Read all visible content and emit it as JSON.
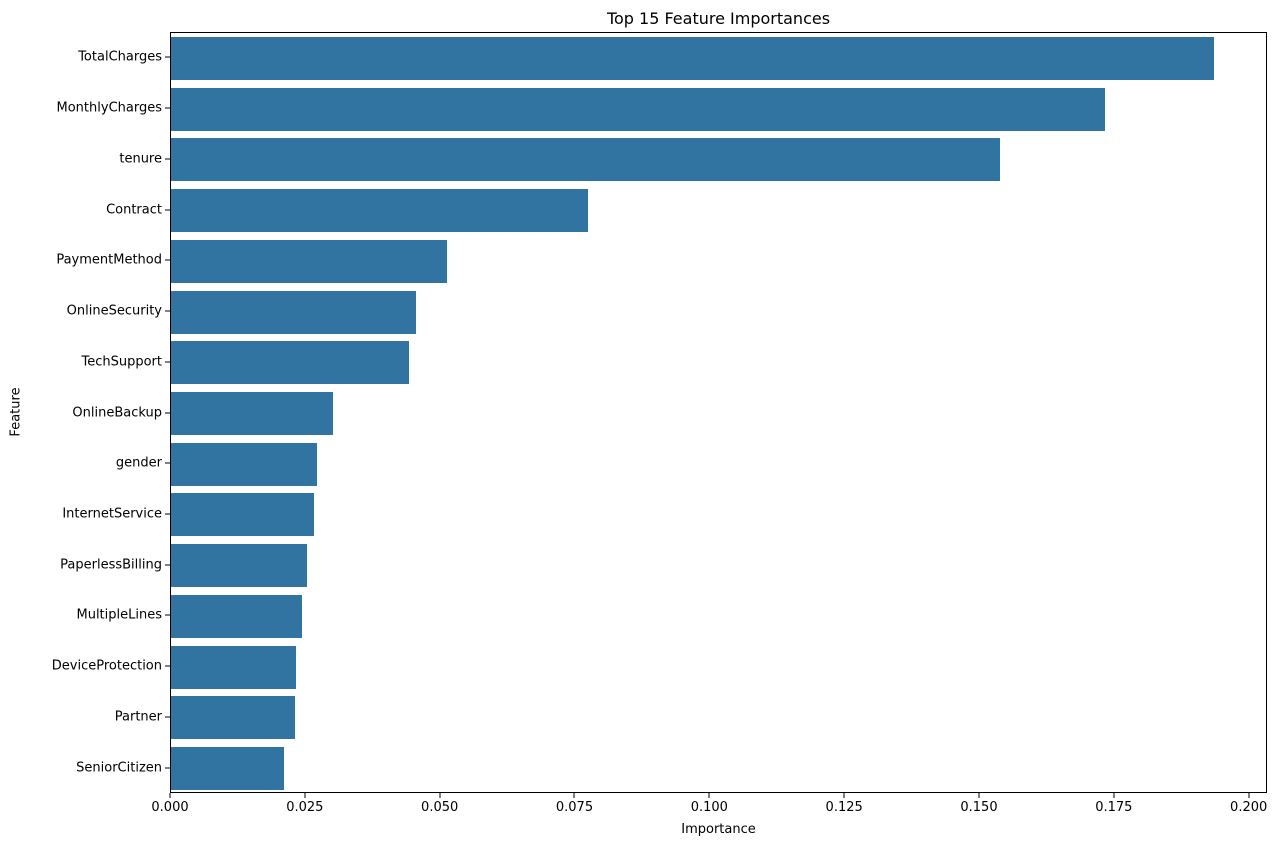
{
  "chart_data": {
    "type": "bar",
    "orientation": "horizontal",
    "title": "Top 15 Feature Importances",
    "xlabel": "Importance",
    "ylabel": "Feature",
    "categories": [
      "TotalCharges",
      "MonthlyCharges",
      "tenure",
      "Contract",
      "PaymentMethod",
      "OnlineSecurity",
      "TechSupport",
      "OnlineBackup",
      "gender",
      "InternetService",
      "PaperlessBilling",
      "MultipleLines",
      "DeviceProtection",
      "Partner",
      "SeniorCitizen"
    ],
    "values": [
      0.1933,
      0.1731,
      0.1538,
      0.0773,
      0.0512,
      0.0454,
      0.0441,
      0.03,
      0.0271,
      0.0266,
      0.0252,
      0.0242,
      0.0232,
      0.0229,
      0.021
    ],
    "xlim": [
      0,
      0.2034
    ],
    "xticks": {
      "values": [
        0.0,
        0.025,
        0.05,
        0.075,
        0.1,
        0.125,
        0.15,
        0.175,
        0.2
      ],
      "labels": [
        "0.000",
        "0.025",
        "0.050",
        "0.075",
        "0.100",
        "0.125",
        "0.150",
        "0.175",
        "0.200"
      ]
    },
    "bar_color": "#3274a1",
    "axis_color": "#000000",
    "grid": false,
    "legend": null
  }
}
